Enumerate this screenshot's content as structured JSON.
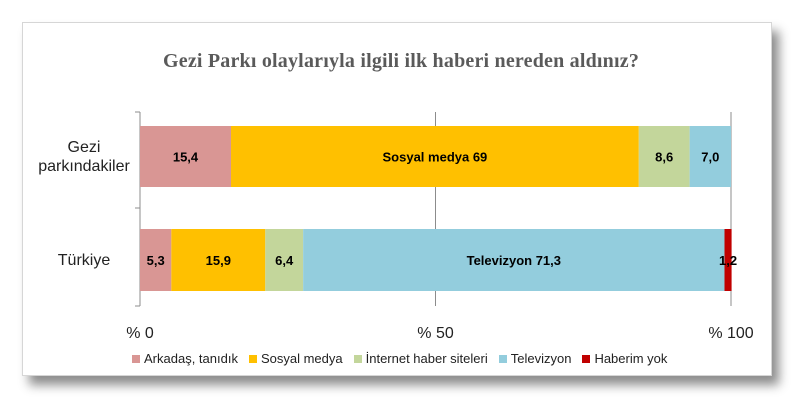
{
  "chart_data": {
    "type": "bar",
    "orientation": "horizontal",
    "stacked": true,
    "title": "Gezi Parkı olaylarıyla ilgili ilk haberi nereden aldınız?",
    "categories": [
      "Gezi parkındakiler",
      "Türkiye"
    ],
    "category_lines": [
      [
        "Gezi",
        "parkındakiler"
      ],
      [
        "Türkiye"
      ]
    ],
    "xlim": [
      0,
      100
    ],
    "x_ticks": [
      0,
      50,
      100
    ],
    "x_tick_labels": [
      "% 0",
      "% 50",
      "% 100"
    ],
    "grid": "vertical",
    "legend_position": "bottom",
    "series": [
      {
        "name": "Arkadaş, tanıdık",
        "color": "#d99694",
        "values": [
          15.4,
          5.3
        ],
        "labels": [
          "15,4",
          "5,3"
        ]
      },
      {
        "name": "Sosyal medya",
        "color": "#ffc000",
        "values": [
          69,
          15.9
        ],
        "labels": [
          "Sosyal medya 69",
          "15,9"
        ]
      },
      {
        "name": "İnternet haber siteleri",
        "color": "#c3d69b",
        "values": [
          8.6,
          6.4
        ],
        "labels": [
          "8,6",
          "6,4"
        ]
      },
      {
        "name": "Televizyon",
        "color": "#93cddd",
        "values": [
          7.0,
          71.3
        ],
        "labels": [
          "7,0",
          "Televizyon 71,3"
        ]
      },
      {
        "name": "Haberim yok",
        "color": "#c00000",
        "values": [
          0,
          1.2
        ],
        "labels": [
          "",
          "1,2"
        ]
      }
    ]
  }
}
